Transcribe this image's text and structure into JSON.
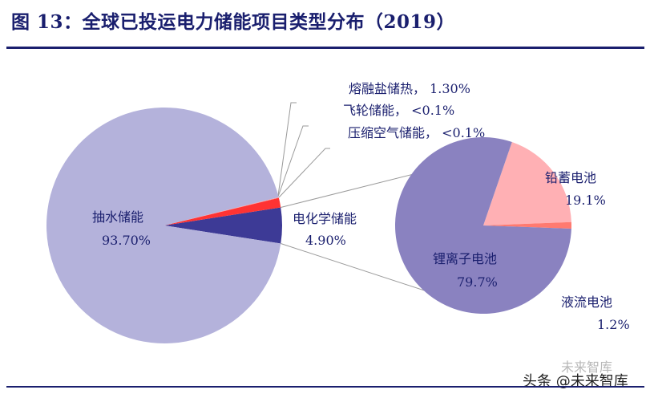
{
  "title": "图 13：全球已投运电力储能项目类型分布（2019）",
  "watermark": {
    "faint": "未来智库",
    "main": "头条 @未来智库"
  },
  "colors": {
    "pumped": "#b4b2db",
    "electrochemical": "#3d3a96",
    "molten_salt": "#ff3333",
    "flywheel": "#ff6b6b",
    "compressed_air": "#ff9999",
    "lithium": "#8a82c0",
    "lead": "#ffb0b4",
    "flow": "#ff7a70",
    "text": "#1a1f6e",
    "connector": "#9a9a9a"
  },
  "chart_data": [
    {
      "type": "pie",
      "slices": [
        {
          "key": "pumped",
          "name": "抽水储能",
          "value": 93.7,
          "label": "93.70%",
          "color": "#b4b2db"
        },
        {
          "key": "electrochemical",
          "name": "电化学储能",
          "value": 4.9,
          "label": "4.90%",
          "color": "#3d3a96"
        },
        {
          "key": "molten_salt",
          "name": "熔融盐储热",
          "value": 1.3,
          "label": "1.30%",
          "color": "#ff3333"
        },
        {
          "key": "flywheel",
          "name": "飞轮储能",
          "value": 0.05,
          "label": "<0.1%",
          "color": "#ff6b6b"
        },
        {
          "key": "compressed_air",
          "name": "压缩空气储能",
          "value": 0.05,
          "label": "<0.1%",
          "color": "#ff9999"
        }
      ]
    },
    {
      "type": "pie",
      "slices": [
        {
          "key": "lithium",
          "name": "锂离子电池",
          "value": 79.7,
          "label": "79.7%",
          "color": "#8a82c0"
        },
        {
          "key": "lead",
          "name": "铅蓄电池",
          "value": 19.1,
          "label": "19.1%",
          "color": "#ffb0b4"
        },
        {
          "key": "flow",
          "name": "液流电池",
          "value": 1.2,
          "label": "1.2%",
          "color": "#ff7a70"
        }
      ]
    }
  ]
}
